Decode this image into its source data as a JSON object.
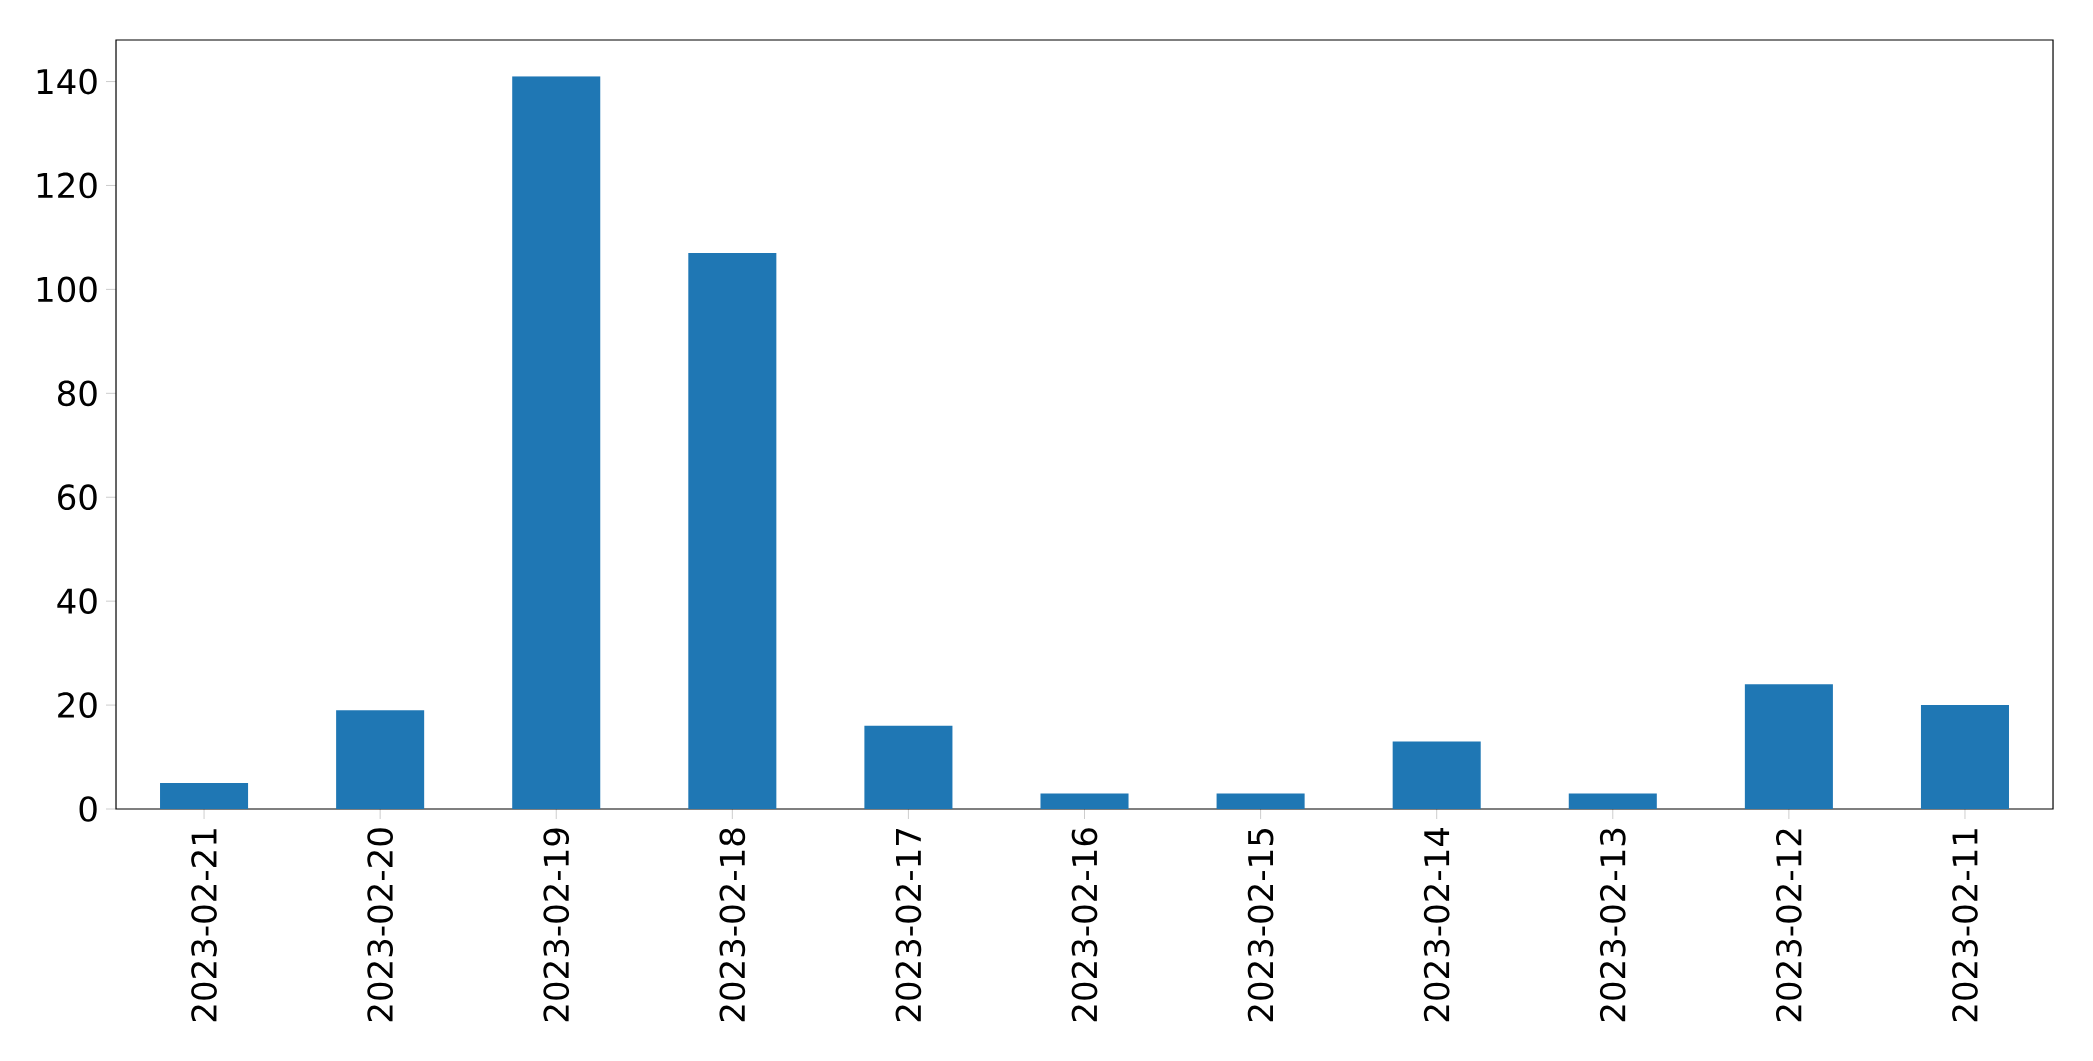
{
  "chart_data": {
    "type": "bar",
    "categories": [
      "2023-02-21",
      "2023-02-20",
      "2023-02-19",
      "2023-02-18",
      "2023-02-17",
      "2023-02-16",
      "2023-02-15",
      "2023-02-14",
      "2023-02-13",
      "2023-02-12",
      "2023-02-11"
    ],
    "values": [
      5,
      19,
      141,
      107,
      16,
      3,
      3,
      13,
      3,
      24,
      20
    ],
    "color": "#1f77b4",
    "ylim": [
      0,
      148
    ],
    "yticks": [
      0,
      20,
      40,
      60,
      80,
      100,
      120,
      140
    ],
    "grid": false
  }
}
